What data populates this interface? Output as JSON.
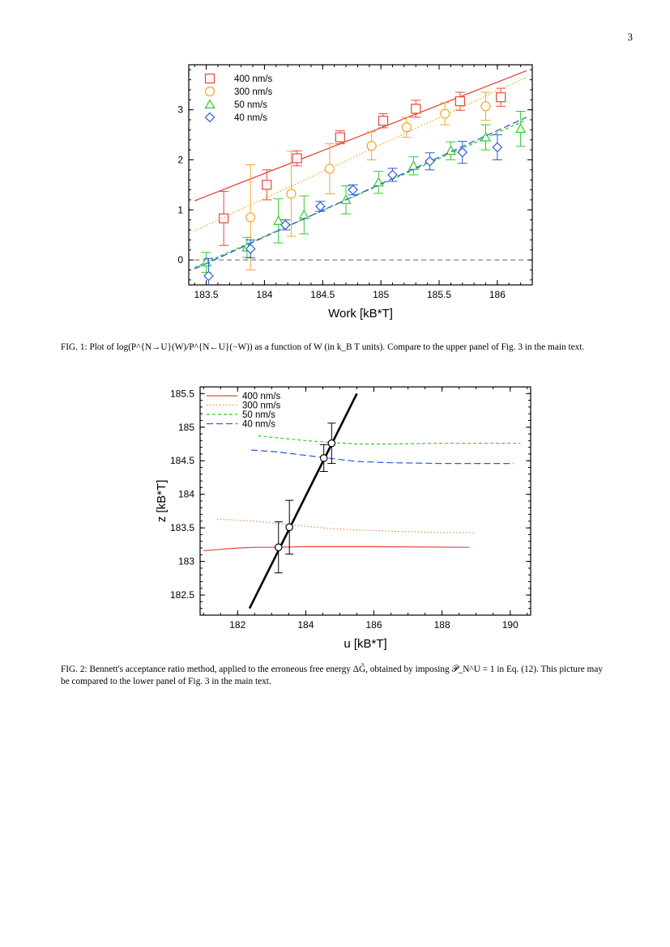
{
  "page": {
    "number": "3"
  },
  "figure1": {
    "caption_label": "FIG. 1:",
    "caption_text": "Plot of log(P^{N→U}(W)/P^{N←U}(−W)) as a function of W (in k_B T units). Compare to the upper panel of Fig. 3 in the main text."
  },
  "figure2": {
    "caption_label": "FIG. 2:",
    "caption_text": "Bennett's acceptance ratio method, applied to the erroneous free energy ΔG̃, obtained by imposing 𝒫_N^U = 1 in Eq. (12). This picture may be compared to the lower panel of Fig. 3 in the main text."
  },
  "chart_data": [
    {
      "type": "scatter",
      "title": "",
      "xlabel": "Work [kB*T]",
      "ylabel": "",
      "xlim": [
        183.35,
        186.3
      ],
      "ylim": [
        -0.5,
        3.9
      ],
      "xticks": [
        "183.5",
        "184",
        "184.5",
        "185",
        "185.5",
        "186"
      ],
      "yticks": [
        "0",
        "1",
        "2",
        "3"
      ],
      "legend_position": "top-left",
      "grid": false,
      "reference_line": {
        "y": 0,
        "style": "dashed",
        "color": "#808080"
      },
      "series": [
        {
          "name": "400 nm/s",
          "marker": "square",
          "color": "#e8463a",
          "points": [
            [
              183.65,
              0.83,
              0.54
            ],
            [
              184.02,
              1.5,
              0.3
            ],
            [
              184.28,
              2.03,
              0.15
            ],
            [
              184.65,
              2.45,
              0.13
            ],
            [
              185.02,
              2.78,
              0.14
            ],
            [
              185.3,
              3.02,
              0.17
            ],
            [
              185.68,
              3.17,
              0.18
            ],
            [
              186.03,
              3.25,
              0.18
            ]
          ],
          "fit": {
            "x": [
              183.4,
              186.25
            ],
            "y": [
              1.18,
              3.78
            ],
            "style": "solid"
          }
        },
        {
          "name": "300 nm/s",
          "marker": "circle",
          "color": "#f5a623",
          "points": [
            [
              183.88,
              0.85,
              1.05
            ],
            [
              184.23,
              1.32,
              0.85
            ],
            [
              184.56,
              1.82,
              0.5
            ],
            [
              184.92,
              2.28,
              0.28
            ],
            [
              185.22,
              2.65,
              0.2
            ],
            [
              185.55,
              2.92,
              0.22
            ],
            [
              185.9,
              3.07,
              0.28
            ]
          ],
          "fit": {
            "x": [
              183.4,
              186.25
            ],
            "y": [
              0.58,
              3.65
            ],
            "style": "dotted"
          }
        },
        {
          "name": "50 nm/s",
          "marker": "triangle",
          "color": "#2ecc2e",
          "points": [
            [
              183.5,
              -0.05,
              0.2
            ],
            [
              183.85,
              0.25,
              0.2
            ],
            [
              184.12,
              0.78,
              0.44
            ],
            [
              184.34,
              0.9,
              0.38
            ],
            [
              184.7,
              1.2,
              0.28
            ],
            [
              184.98,
              1.55,
              0.22
            ],
            [
              185.28,
              1.88,
              0.18
            ],
            [
              185.6,
              2.18,
              0.18
            ],
            [
              185.9,
              2.45,
              0.25
            ],
            [
              186.2,
              2.62,
              0.35
            ]
          ],
          "fit": {
            "x": [
              183.4,
              186.25
            ],
            "y": [
              -0.15,
              2.8
            ],
            "style": "dashed"
          }
        },
        {
          "name": "40 nm/s",
          "marker": "diamond",
          "color": "#2a5bd7",
          "points": [
            [
              183.52,
              -0.32,
              0.35
            ],
            [
              183.88,
              0.22,
              0.18
            ],
            [
              184.18,
              0.7,
              0.1
            ],
            [
              184.48,
              1.07,
              0.1
            ],
            [
              184.76,
              1.4,
              0.1
            ],
            [
              185.1,
              1.7,
              0.13
            ],
            [
              185.42,
              1.97,
              0.17
            ],
            [
              185.7,
              2.15,
              0.22
            ],
            [
              186.0,
              2.25,
              0.25
            ]
          ],
          "fit": {
            "x": [
              183.4,
              186.25
            ],
            "y": [
              -0.18,
              2.85
            ],
            "style": "longdash"
          }
        }
      ]
    },
    {
      "type": "line",
      "title": "",
      "xlabel": "u [kB*T]",
      "ylabel": "z [kB*T]",
      "xlim": [
        180.9,
        190.6
      ],
      "ylim": [
        182.2,
        185.6
      ],
      "xticks": [
        "182",
        "184",
        "186",
        "188",
        "190"
      ],
      "yticks": [
        "182.5",
        "183",
        "183.5",
        "184",
        "184.5",
        "185",
        "185.5"
      ],
      "legend_position": "top-left",
      "grid": false,
      "series": [
        {
          "name": "400 nm/s",
          "color": "#e8463a",
          "style": "solid",
          "x": [
            181.0,
            181.5,
            182.0,
            182.5,
            183.0,
            184.0,
            186.0,
            188.8
          ],
          "y": [
            183.16,
            183.18,
            183.2,
            183.21,
            183.21,
            183.22,
            183.22,
            183.21
          ]
        },
        {
          "name": "300 nm/s",
          "color": "#f08a4b",
          "style": "dotted",
          "x": [
            181.4,
            182.5,
            183.5,
            184.5,
            185.5,
            186.5,
            188.0,
            189.0
          ],
          "y": [
            183.63,
            183.6,
            183.55,
            183.5,
            183.47,
            183.45,
            183.43,
            183.43
          ]
        },
        {
          "name": "50 nm/s",
          "color": "#2ecc2e",
          "style": "dashed",
          "x": [
            182.6,
            183.2,
            184.0,
            184.8,
            185.5,
            186.5,
            188.0,
            190.3
          ],
          "y": [
            184.87,
            184.84,
            184.8,
            184.77,
            184.75,
            184.75,
            184.76,
            184.76
          ]
        },
        {
          "name": "40 nm/s",
          "color": "#2a5bd7",
          "style": "longdash",
          "x": [
            182.4,
            183.2,
            184.0,
            184.8,
            185.5,
            186.5,
            188.0,
            190.1
          ],
          "y": [
            184.66,
            184.63,
            184.58,
            184.53,
            184.49,
            184.47,
            184.46,
            184.46
          ]
        }
      ],
      "diagonal": {
        "x": [
          182.35,
          185.5
        ],
        "y": [
          182.3,
          185.5
        ],
        "color": "#000000"
      },
      "points": [
        {
          "u": 183.2,
          "z": 183.21,
          "err": 0.38
        },
        {
          "u": 183.52,
          "z": 183.51,
          "err": 0.4
        },
        {
          "u": 184.53,
          "z": 184.54,
          "err": 0.2
        },
        {
          "u": 184.76,
          "z": 184.76,
          "err": 0.3
        }
      ]
    }
  ]
}
